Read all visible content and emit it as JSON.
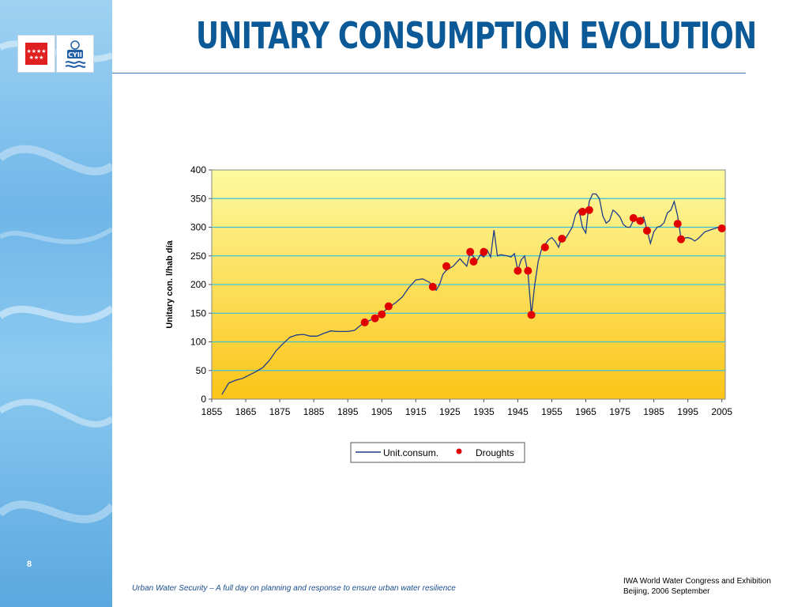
{
  "slide": {
    "title": "UNITARY CONSUMPTION EVOLUTION",
    "slide_number": "8",
    "footer_left": "Urban Water Security – A full day on planning and response to ensure urban water resilience",
    "footer_right_line1": "IWA World Water Congress and Exhibition",
    "footer_right_line2": "Beijing, 2006 September",
    "logos": [
      "comunidad-de-madrid-logo",
      "canal-de-isabel-ii-logo"
    ],
    "logo_text": "CYII"
  },
  "colors": {
    "title": "#0b5a97",
    "series_line": "#1f3c88",
    "droughts": "#e00000",
    "gridline": "#3cc0d8",
    "plot_bg_top": "#fdfaa0",
    "plot_bg_bottom": "#fbc418"
  },
  "chart_data": {
    "type": "line",
    "title": "",
    "xlabel": "",
    "ylabel": "Unitary con. l/hab día",
    "xlim": [
      1855,
      2006
    ],
    "ylim": [
      0,
      400
    ],
    "x_ticks": [
      "1855",
      "1865",
      "1875",
      "1885",
      "1895",
      "1905",
      "1915",
      "1925",
      "1935",
      "1945",
      "1955",
      "1965",
      "1975",
      "1985",
      "1995",
      "2005"
    ],
    "y_ticks": [
      "0",
      "50",
      "100",
      "150",
      "200",
      "250",
      "300",
      "350",
      "400"
    ],
    "grid": true,
    "legend_position": "bottom",
    "series": [
      {
        "name": "Unit.consum.",
        "type": "line",
        "points": [
          [
            1858,
            8
          ],
          [
            1860,
            28
          ],
          [
            1862,
            33
          ],
          [
            1864,
            36
          ],
          [
            1866,
            42
          ],
          [
            1868,
            48
          ],
          [
            1870,
            55
          ],
          [
            1872,
            68
          ],
          [
            1874,
            85
          ],
          [
            1876,
            97
          ],
          [
            1878,
            108
          ],
          [
            1880,
            112
          ],
          [
            1882,
            113
          ],
          [
            1884,
            110
          ],
          [
            1886,
            110
          ],
          [
            1888,
            115
          ],
          [
            1890,
            119
          ],
          [
            1892,
            118
          ],
          [
            1895,
            118
          ],
          [
            1897,
            120
          ],
          [
            1899,
            130
          ],
          [
            1901,
            136
          ],
          [
            1903,
            142
          ],
          [
            1905,
            150
          ],
          [
            1907,
            160
          ],
          [
            1909,
            168
          ],
          [
            1911,
            178
          ],
          [
            1913,
            195
          ],
          [
            1915,
            208
          ],
          [
            1917,
            210
          ],
          [
            1919,
            204
          ],
          [
            1920,
            196
          ],
          [
            1921,
            190
          ],
          [
            1922,
            200
          ],
          [
            1923,
            218
          ],
          [
            1924,
            225
          ],
          [
            1926,
            232
          ],
          [
            1928,
            245
          ],
          [
            1930,
            232
          ],
          [
            1931,
            256
          ],
          [
            1932,
            248
          ],
          [
            1933,
            242
          ],
          [
            1934,
            252
          ],
          [
            1935,
            248
          ],
          [
            1936,
            260
          ],
          [
            1937,
            248
          ],
          [
            1938,
            295
          ],
          [
            1939,
            250
          ],
          [
            1940,
            252
          ],
          [
            1942,
            250
          ],
          [
            1943,
            248
          ],
          [
            1944,
            254
          ],
          [
            1945,
            225
          ],
          [
            1946,
            243
          ],
          [
            1947,
            250
          ],
          [
            1948,
            220
          ],
          [
            1949,
            147
          ],
          [
            1950,
            200
          ],
          [
            1951,
            240
          ],
          [
            1952,
            262
          ],
          [
            1953,
            270
          ],
          [
            1954,
            278
          ],
          [
            1955,
            282
          ],
          [
            1956,
            275
          ],
          [
            1957,
            265
          ],
          [
            1958,
            285
          ],
          [
            1959,
            280
          ],
          [
            1960,
            290
          ],
          [
            1961,
            300
          ],
          [
            1962,
            322
          ],
          [
            1963,
            330
          ],
          [
            1964,
            300
          ],
          [
            1965,
            290
          ],
          [
            1966,
            345
          ],
          [
            1967,
            358
          ],
          [
            1968,
            358
          ],
          [
            1969,
            350
          ],
          [
            1970,
            320
          ],
          [
            1971,
            307
          ],
          [
            1972,
            312
          ],
          [
            1973,
            330
          ],
          [
            1974,
            325
          ],
          [
            1975,
            318
          ],
          [
            1976,
            305
          ],
          [
            1977,
            300
          ],
          [
            1978,
            300
          ],
          [
            1979,
            312
          ],
          [
            1980,
            315
          ],
          [
            1981,
            312
          ],
          [
            1982,
            318
          ],
          [
            1983,
            295
          ],
          [
            1984,
            272
          ],
          [
            1985,
            292
          ],
          [
            1986,
            300
          ],
          [
            1987,
            302
          ],
          [
            1988,
            308
          ],
          [
            1989,
            325
          ],
          [
            1990,
            330
          ],
          [
            1991,
            345
          ],
          [
            1992,
            320
          ],
          [
            1993,
            280
          ],
          [
            1995,
            282
          ],
          [
            1996,
            280
          ],
          [
            1997,
            276
          ],
          [
            1998,
            280
          ],
          [
            2000,
            292
          ],
          [
            2002,
            296
          ],
          [
            2004,
            300
          ],
          [
            2005,
            298
          ]
        ]
      },
      {
        "name": "Droughts",
        "type": "scatter",
        "points": [
          [
            1900,
            134
          ],
          [
            1903,
            141
          ],
          [
            1905,
            148
          ],
          [
            1907,
            162
          ],
          [
            1920,
            196
          ],
          [
            1924,
            232
          ],
          [
            1931,
            257
          ],
          [
            1932,
            240
          ],
          [
            1935,
            257
          ],
          [
            1945,
            224
          ],
          [
            1948,
            224
          ],
          [
            1949,
            147
          ],
          [
            1953,
            265
          ],
          [
            1958,
            280
          ],
          [
            1964,
            327
          ],
          [
            1966,
            330
          ],
          [
            1979,
            316
          ],
          [
            1981,
            311
          ],
          [
            1983,
            294
          ],
          [
            1992,
            306
          ],
          [
            1993,
            279
          ],
          [
            2005,
            298
          ]
        ]
      }
    ]
  }
}
